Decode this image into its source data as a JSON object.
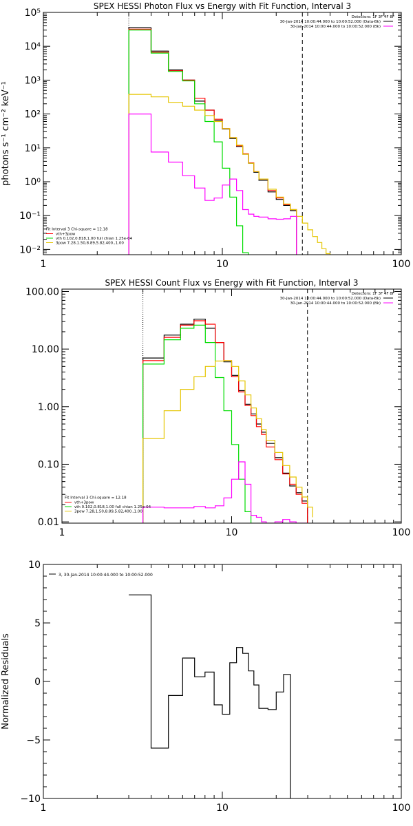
{
  "chart_data": [
    {
      "type": "line",
      "title": "SPEX HESSI Photon Flux vs Energy with Fit Function, Interval 3",
      "ylabel": "photons s⁻¹ cm⁻² keV⁻¹",
      "xlabel": "",
      "xscale": "log",
      "yscale": "log",
      "xlim": [
        1,
        100
      ],
      "ylim": [
        0.007,
        100000
      ],
      "xticks": [
        1,
        10,
        100
      ],
      "xtick_labels": [
        "1",
        "10",
        "100"
      ],
      "yticks": [
        0.01,
        0.1,
        1,
        10,
        100,
        1000,
        10000,
        100000
      ],
      "ytick_labels": [
        "10⁻²",
        "10⁻¹",
        "10⁰",
        "10¹",
        "10²",
        "10³",
        "10⁴",
        "10⁵"
      ],
      "vlines": [
        {
          "x": 3,
          "style": "dotted"
        },
        {
          "x": 28,
          "style": "dashed"
        }
      ],
      "edges": [
        3,
        4,
        5,
        6,
        7,
        8,
        9,
        10,
        11,
        12,
        13,
        14,
        15,
        16,
        18,
        20,
        22,
        24,
        26,
        28,
        30,
        32,
        34,
        36,
        38,
        40,
        42,
        44,
        46
      ],
      "legend_top": {
        "header": "Detectors: 1F 3F 4F 8F",
        "entries": [
          {
            "label": "30-Jan-2014 10:00:44.000 to 10:00:52.000 (Data-Bk)",
            "color": "#000000"
          },
          {
            "label": "30-Jan-2014 10:00:44.000 to 10:00:52.000 (Bk)",
            "color": "#ff00ff"
          }
        ]
      },
      "legend_bottom": {
        "header": "Fit Interval 3   Chi-square = 12.18",
        "entries": [
          {
            "label": "vth+3pow",
            "color": "#ff0000"
          },
          {
            "label": "vth 0.102,0.818,1.00  full chian 1.25e-04",
            "color": "#00dd00"
          },
          {
            "label": "3pow 7.28,1.50,8.89,5.82,400.,1.00",
            "color": "#e5c500"
          }
        ]
      },
      "series": [
        {
          "color": "#000000",
          "values": [
            35000,
            7200,
            2000,
            1000,
            240,
            130,
            65,
            36,
            19,
            11,
            6.5,
            3.5,
            1.9,
            1.1,
            0.5,
            0.3,
            0.2,
            0.14
          ]
        },
        {
          "color": "#ff0000",
          "values": [
            32000,
            6700,
            1900,
            1000,
            290,
            130,
            70,
            37,
            20,
            11.5,
            6.7,
            3.6,
            2.0,
            1.2,
            0.55,
            0.33,
            0.21,
            0.15
          ]
        },
        {
          "color": "#00dd00",
          "values": [
            30000,
            6300,
            1800,
            950,
            200,
            60,
            15,
            2.5,
            0.35,
            0.05,
            0.008
          ]
        },
        {
          "color": "#e5c500",
          "values": [
            380,
            320,
            220,
            170,
            130,
            90,
            60,
            37,
            20,
            12,
            6.5,
            3.5,
            2.0,
            1.2,
            0.6,
            0.35,
            0.22,
            0.15,
            0.095,
            0.06,
            0.038,
            0.024,
            0.016,
            0.0105,
            0.0075,
            0.0055
          ]
        },
        {
          "color": "#ff00ff",
          "values": [
            100,
            7.5,
            3.8,
            1.5,
            0.65,
            0.28,
            0.33,
            0.8,
            1.2,
            0.55,
            0.15,
            0.11,
            0.095,
            0.09,
            0.08,
            0.078,
            0.08,
            0.095
          ]
        }
      ]
    },
    {
      "type": "line",
      "title": "SPEX HESSI Count Flux vs Energy with Fit Function, Interval 3",
      "ylabel": "",
      "xlabel": "",
      "xscale": "log",
      "yscale": "log",
      "xlim": [
        1,
        100
      ],
      "ylim": [
        0.0095,
        110
      ],
      "xticks": [
        1,
        10,
        100
      ],
      "xtick_labels": [
        "1",
        "10",
        "100"
      ],
      "yticks": [
        0.01,
        0.1,
        1,
        10,
        100
      ],
      "ytick_labels": [
        "0.01",
        "0.10",
        "1.00",
        "10.00",
        "100.00"
      ],
      "vlines": [
        {
          "x": 3,
          "style": "dotted"
        },
        {
          "x": 28,
          "style": "dashed"
        }
      ],
      "edges": [
        3,
        4,
        5,
        6,
        7,
        8,
        9,
        10,
        11,
        12,
        13,
        14,
        15,
        16,
        18,
        20,
        22,
        24,
        26,
        28,
        30
      ],
      "legend_top": {
        "header": "Detectors: 1F 3F 4F 8F",
        "entries": [
          {
            "label": "30-Jan-2014 10:00:44.000 to 10:00:52.000 (Data-Bk)",
            "color": "#000000"
          },
          {
            "label": "30-Jan-2014 10:00:44.000 to 10:00:52.000 (Bk)",
            "color": "#ff00ff"
          }
        ]
      },
      "legend_bottom": {
        "header": "Fit Interval 3   Chi-square = 12.18",
        "entries": [
          {
            "label": "vth+3pow",
            "color": "#ff0000"
          },
          {
            "label": "vth 0.102,0.818,1.00  full chian 1.25e-04",
            "color": "#00dd00"
          },
          {
            "label": "3pow 7.28,1.50,8.89,5.82,400.,1.00",
            "color": "#e5c500"
          }
        ]
      },
      "series": [
        {
          "color": "#000000",
          "values": [
            7.0,
            17.5,
            27,
            33,
            23,
            13,
            6.0,
            3.5,
            1.9,
            1.1,
            0.75,
            0.5,
            0.36,
            0.23,
            0.13,
            0.07,
            0.042,
            0.032,
            0.023
          ]
        },
        {
          "color": "#ff0000",
          "values": [
            6.3,
            16,
            26,
            31,
            27,
            13,
            6.3,
            3.3,
            1.8,
            1.05,
            0.7,
            0.45,
            0.33,
            0.2,
            0.12,
            0.068,
            0.045,
            0.03,
            0.021
          ]
        },
        {
          "color": "#00dd00",
          "values": [
            5.5,
            14.5,
            23,
            26,
            13,
            3.2,
            0.85,
            0.22,
            0.055,
            0.015,
            0.009
          ]
        },
        {
          "color": "#e5c500",
          "values": [
            0.28,
            0.85,
            2.0,
            3.3,
            5.0,
            6.2,
            6.3,
            5.0,
            2.8,
            1.6,
            0.95,
            0.62,
            0.4,
            0.26,
            0.16,
            0.095,
            0.06,
            0.04,
            0.027,
            0.018,
            0.012
          ]
        },
        {
          "color": "#ff00ff",
          "values": [
            0.018,
            0.0175,
            0.0175,
            0.0185,
            0.0175,
            0.019,
            0.026,
            0.055,
            0.11,
            0.045,
            0.013,
            0.012,
            0.01,
            0.0095,
            0.01,
            0.011,
            0.01,
            0.0095,
            0.0095
          ]
        }
      ]
    },
    {
      "type": "line",
      "title": "",
      "ylabel": "Normalized Residuals",
      "xlabel": "",
      "xscale": "log",
      "yscale": "linear",
      "xlim": [
        1,
        100
      ],
      "ylim": [
        -10,
        10
      ],
      "xticks": [
        1,
        10,
        100
      ],
      "xtick_labels": [
        "1",
        "10",
        "100"
      ],
      "yticks": [
        -10,
        -5,
        0,
        5,
        10
      ],
      "ytick_labels": [
        "−10",
        "−5",
        "0",
        "5",
        "10"
      ],
      "vlines": [],
      "edges": [
        3,
        4,
        5,
        6,
        7,
        8,
        9,
        10,
        11,
        12,
        13,
        14,
        15,
        16,
        18,
        20,
        22,
        24,
        26,
        28
      ],
      "legend_top": {
        "header": "",
        "entries": [
          {
            "label": "3, 30-Jan-2014 10:00:44.000 to 10:00:52.000",
            "color": "#000000"
          }
        ]
      },
      "legend_bottom": {
        "header": "",
        "entries": []
      },
      "series": [
        {
          "color": "#000000",
          "values": [
            7.4,
            -5.7,
            -1.2,
            2.0,
            0.4,
            0.8,
            -2.0,
            -2.8,
            1.6,
            2.9,
            2.4,
            0.9,
            -0.3,
            -2.3,
            -2.4,
            -0.9,
            0.6
          ]
        }
      ]
    }
  ]
}
